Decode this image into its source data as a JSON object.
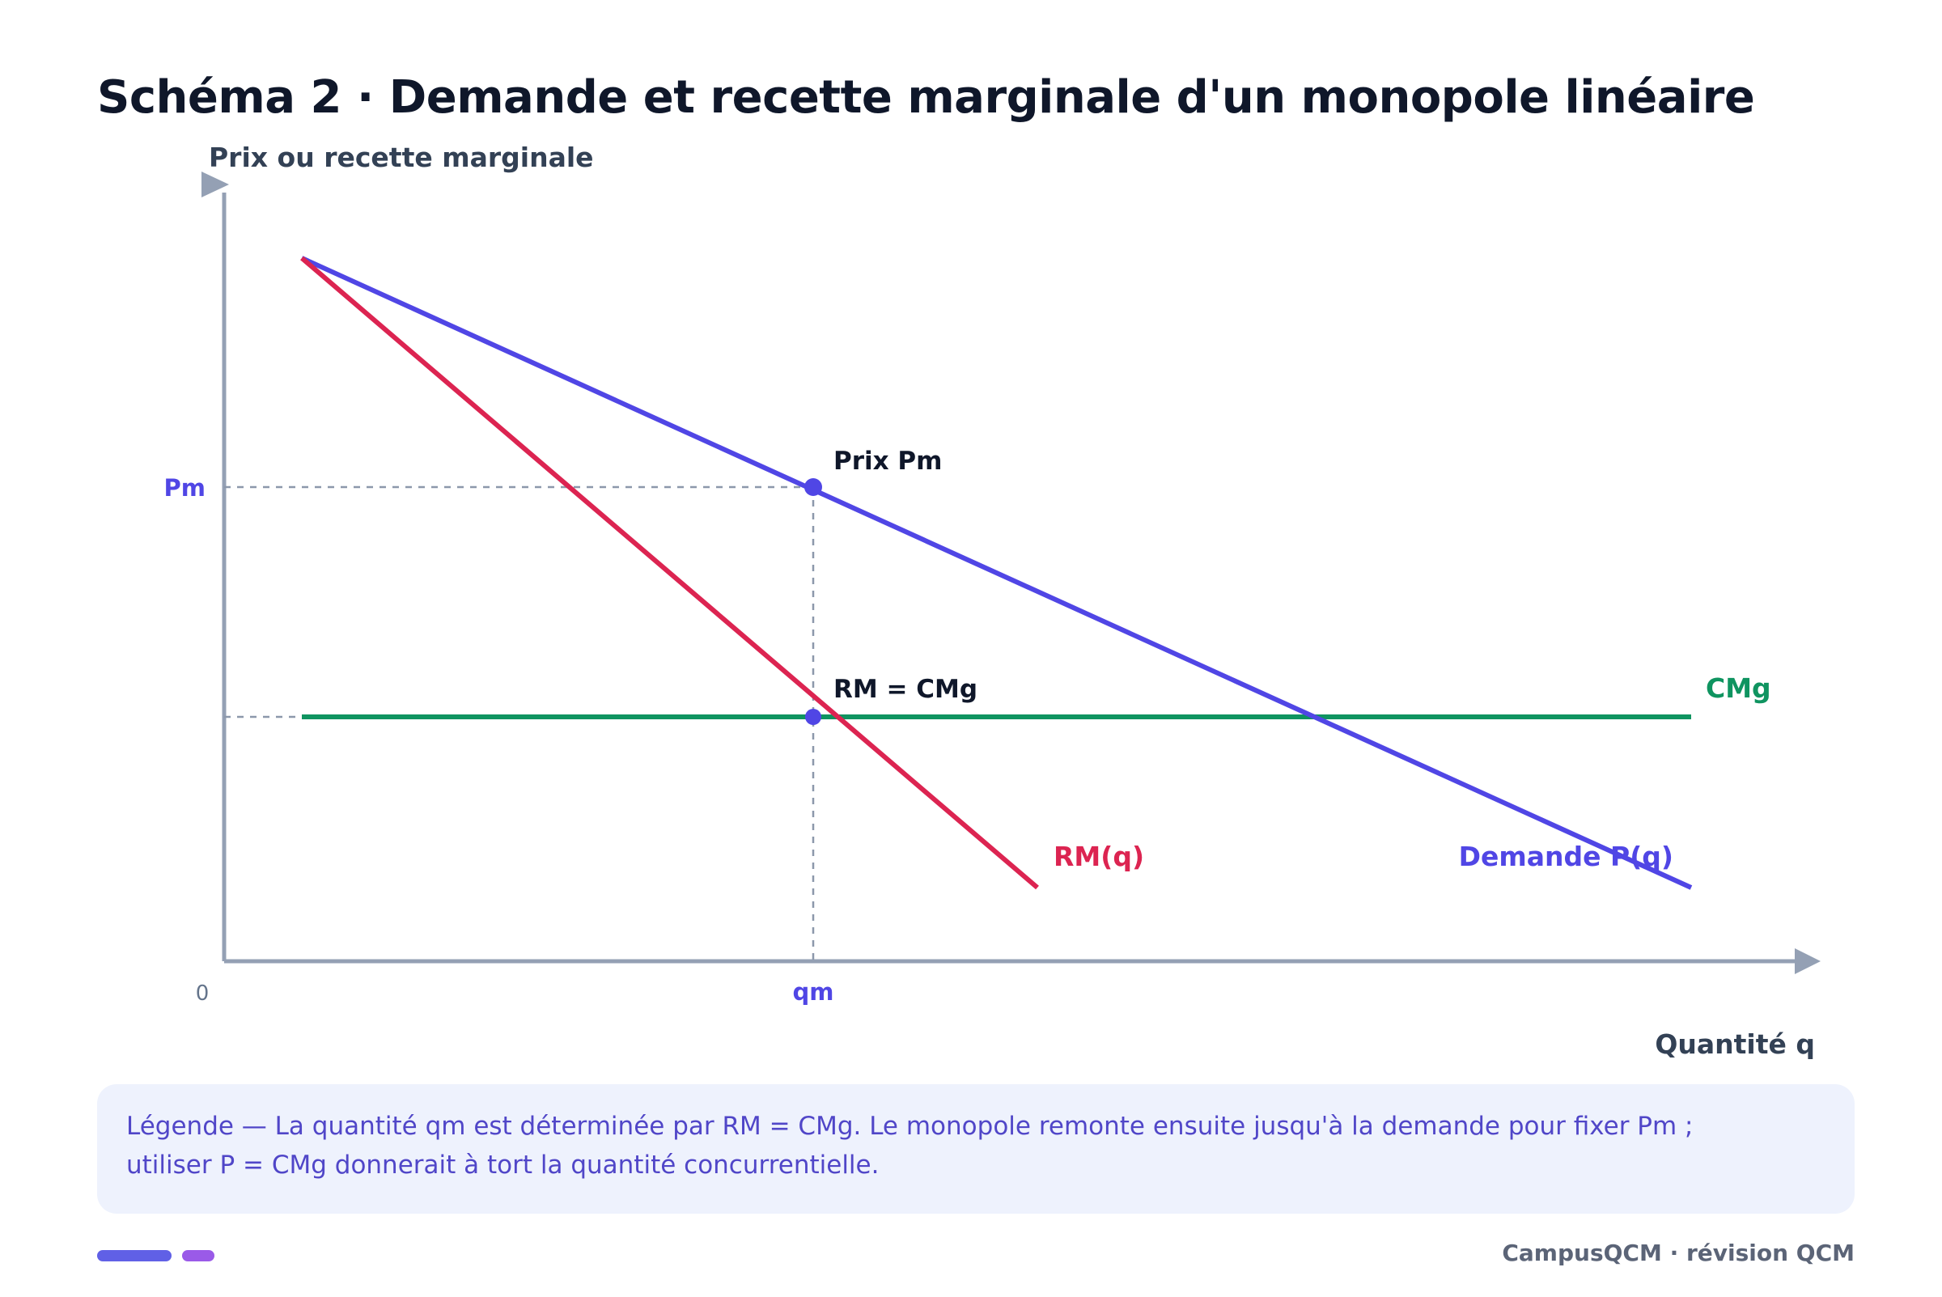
{
  "title": "Schéma 2 · Demande et recette marginale d'un monopole linéaire",
  "axes": {
    "y_label": "Prix ou recette marginale",
    "x_label": "Quantité q",
    "origin": "0"
  },
  "ticks": {
    "x_tick": "qm",
    "y_tick": "Pm"
  },
  "curves": {
    "demand_label": "Demande P(q)",
    "mr_label": "RM(q)",
    "mc_label": "CMg"
  },
  "annotations": {
    "price_point": "Prix Pm",
    "optimum_point": "RM = CMg"
  },
  "caption": {
    "line1": "Légende — La quantité qm est déterminée par RM = CMg. Le monopole remonte ensuite jusqu'à la demande pour fixer Pm ;",
    "line2": "utiliser P = CMg donnerait à tort la quantité concurrentielle."
  },
  "footer": {
    "brand": "CampusQCM · révision QCM"
  },
  "colors": {
    "demand": "#5046e5",
    "marginal_revenue": "#dc2451",
    "marginal_cost": "#0f9460",
    "axis": "#94a0b4",
    "guide": "#8c98ab",
    "pill_primary": "#6060e6",
    "pill_secondary": "#9a5ae8"
  }
}
